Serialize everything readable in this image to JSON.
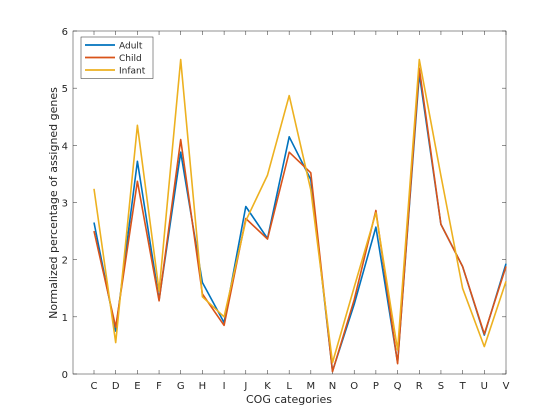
{
  "chart_data": {
    "type": "line",
    "xlabel": "COG categories",
    "ylabel": "Normalized percentage of assigned genes",
    "categories": [
      "C",
      "D",
      "E",
      "F",
      "G",
      "H",
      "I",
      "J",
      "K",
      "L",
      "M",
      "N",
      "O",
      "P",
      "Q",
      "R",
      "S",
      "T",
      "U",
      "V"
    ],
    "ylim": [
      0,
      6
    ],
    "yticks": [
      0,
      1,
      2,
      3,
      4,
      5,
      6
    ],
    "grid": false,
    "legend_position": "top-left",
    "series": [
      {
        "name": "Adult",
        "color": "#0072BD",
        "values": [
          2.65,
          0.75,
          3.72,
          1.3,
          3.88,
          1.6,
          0.9,
          2.93,
          2.37,
          4.15,
          3.4,
          0.05,
          1.22,
          2.57,
          0.2,
          5.25,
          2.62,
          1.88,
          0.68,
          1.93
        ]
      },
      {
        "name": "Child",
        "color": "#D95319",
        "values": [
          2.5,
          0.82,
          3.37,
          1.28,
          4.1,
          1.4,
          0.85,
          2.72,
          2.36,
          3.88,
          3.52,
          0.04,
          1.3,
          2.86,
          0.18,
          5.35,
          2.62,
          1.88,
          0.7,
          1.88
        ]
      },
      {
        "name": "Infant",
        "color": "#EDB120",
        "values": [
          3.24,
          0.55,
          4.35,
          1.45,
          5.5,
          1.35,
          1.0,
          2.68,
          3.48,
          4.87,
          3.22,
          0.2,
          1.52,
          2.82,
          0.42,
          5.5,
          3.47,
          1.5,
          0.48,
          1.62
        ]
      }
    ]
  }
}
